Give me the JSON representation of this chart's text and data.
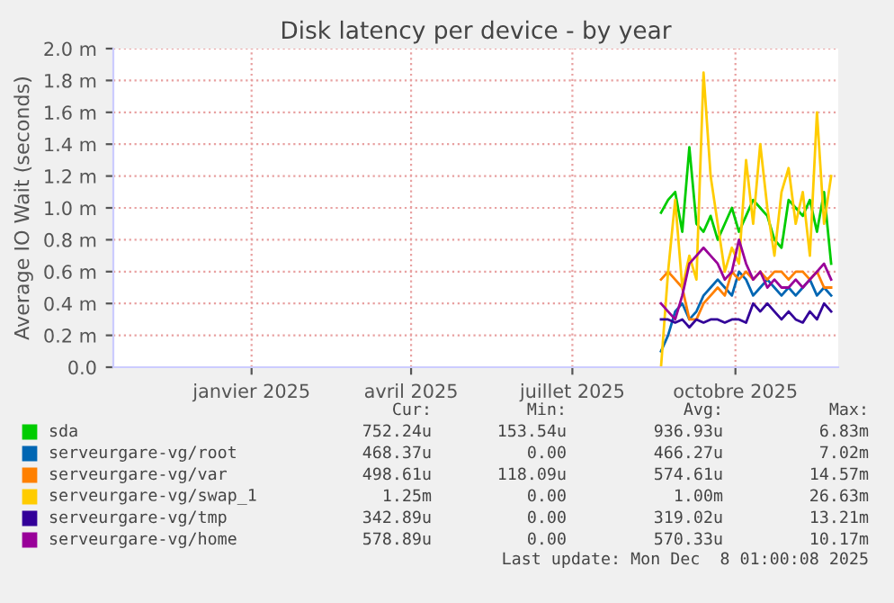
{
  "chart_data": {
    "type": "line",
    "title": "Disk latency per device - by year",
    "ylabel": "Average IO Wait (seconds)",
    "x": [
      "2025-08-20",
      "2025-08-24",
      "2025-08-28",
      "2025-09-01",
      "2025-09-05",
      "2025-09-09",
      "2025-09-13",
      "2025-09-17",
      "2025-09-21",
      "2025-09-25",
      "2025-09-29",
      "2025-10-03",
      "2025-10-07",
      "2025-10-11",
      "2025-10-15",
      "2025-10-19",
      "2025-10-23",
      "2025-10-27",
      "2025-10-31",
      "2025-11-04",
      "2025-11-08",
      "2025-11-12",
      "2025-11-16",
      "2025-11-20",
      "2025-11-24"
    ],
    "series": [
      {
        "name": "sda",
        "color": "#00cc00",
        "values": [
          0.97,
          1.05,
          1.1,
          0.85,
          1.38,
          0.9,
          0.85,
          0.95,
          0.8,
          0.9,
          1.0,
          0.85,
          0.95,
          1.05,
          1.0,
          0.95,
          0.8,
          0.75,
          1.05,
          1.0,
          0.95,
          1.05,
          0.85,
          1.1,
          0.65
        ]
      },
      {
        "name": "serveurgare-vg/root",
        "color": "#0066b3",
        "values": [
          0.1,
          0.2,
          0.35,
          0.4,
          0.3,
          0.35,
          0.45,
          0.5,
          0.55,
          0.5,
          0.45,
          0.6,
          0.55,
          0.45,
          0.5,
          0.55,
          0.5,
          0.45,
          0.5,
          0.45,
          0.5,
          0.55,
          0.45,
          0.5,
          0.45
        ]
      },
      {
        "name": "serveurgare-vg/var",
        "color": "#ff8000",
        "values": [
          0.55,
          0.6,
          0.55,
          0.5,
          0.3,
          0.3,
          0.4,
          0.45,
          0.5,
          0.45,
          0.6,
          0.55,
          0.6,
          0.55,
          0.6,
          0.55,
          0.6,
          0.6,
          0.55,
          0.6,
          0.6,
          0.55,
          0.6,
          0.5,
          0.5
        ]
      },
      {
        "name": "serveurgare-vg/swap_1",
        "color": "#ffcc00",
        "values": [
          0.0,
          0.6,
          1.05,
          0.5,
          0.7,
          0.55,
          1.85,
          1.2,
          0.9,
          0.6,
          0.75,
          0.65,
          1.3,
          0.9,
          1.4,
          1.0,
          0.7,
          1.1,
          1.25,
          0.9,
          1.1,
          0.7,
          1.6,
          0.9,
          1.2
        ]
      },
      {
        "name": "serveurgare-vg/tmp",
        "color": "#330099",
        "values": [
          0.3,
          0.3,
          0.28,
          0.3,
          0.25,
          0.3,
          0.28,
          0.3,
          0.3,
          0.28,
          0.3,
          0.3,
          0.28,
          0.4,
          0.35,
          0.4,
          0.35,
          0.3,
          0.35,
          0.3,
          0.28,
          0.35,
          0.3,
          0.4,
          0.35
        ]
      },
      {
        "name": "serveurgare-vg/home",
        "color": "#990099",
        "values": [
          0.4,
          0.35,
          0.3,
          0.45,
          0.65,
          0.7,
          0.75,
          0.7,
          0.65,
          0.55,
          0.6,
          0.8,
          0.65,
          0.55,
          0.6,
          0.5,
          0.55,
          0.5,
          0.5,
          0.55,
          0.5,
          0.55,
          0.6,
          0.65,
          0.55
        ]
      }
    ],
    "xlim": [
      "2024-10-15",
      "2025-11-28"
    ],
    "xticks": [
      {
        "value": "2025-01-01",
        "label": "janvier 2025"
      },
      {
        "value": "2025-04-01",
        "label": "avril 2025"
      },
      {
        "value": "2025-07-01",
        "label": "juillet 2025"
      },
      {
        "value": "2025-10-01",
        "label": "octobre 2025"
      }
    ],
    "ylim": [
      0,
      2.0
    ],
    "yticks": [
      {
        "value": 0,
        "label": "0.0"
      },
      {
        "value": 0.2,
        "label": "0.2 m"
      },
      {
        "value": 0.4,
        "label": "0.4 m"
      },
      {
        "value": 0.6,
        "label": "0.6 m"
      },
      {
        "value": 0.8,
        "label": "0.8 m"
      },
      {
        "value": 1.0,
        "label": "1.0 m"
      },
      {
        "value": 1.2,
        "label": "1.2 m"
      },
      {
        "value": 1.4,
        "label": "1.4 m"
      },
      {
        "value": 1.6,
        "label": "1.6 m"
      },
      {
        "value": 1.8,
        "label": "1.8 m"
      },
      {
        "value": 2.0,
        "label": "2.0 m"
      }
    ],
    "grid": true,
    "legend": "bottom",
    "marker": "none",
    "line_style": "solid",
    "annotations": [
      "Cur:",
      "Min:",
      "Avg:",
      "Max:",
      "752.24u",
      "153.54u",
      "936.93u",
      "6.83m",
      "468.37u",
      "0.00",
      "466.27u",
      "7.02m",
      "498.61u",
      "118.09u",
      "574.61u",
      "14.57m",
      "1.25m",
      "0.00",
      "1.00m",
      "26.63m",
      "342.89u",
      "0.00",
      "319.02u",
      "13.21m",
      "578.89u",
      "0.00",
      "570.33u",
      "10.17m",
      "Last update: Mon Dec  8 01:00:08 2025"
    ]
  }
}
